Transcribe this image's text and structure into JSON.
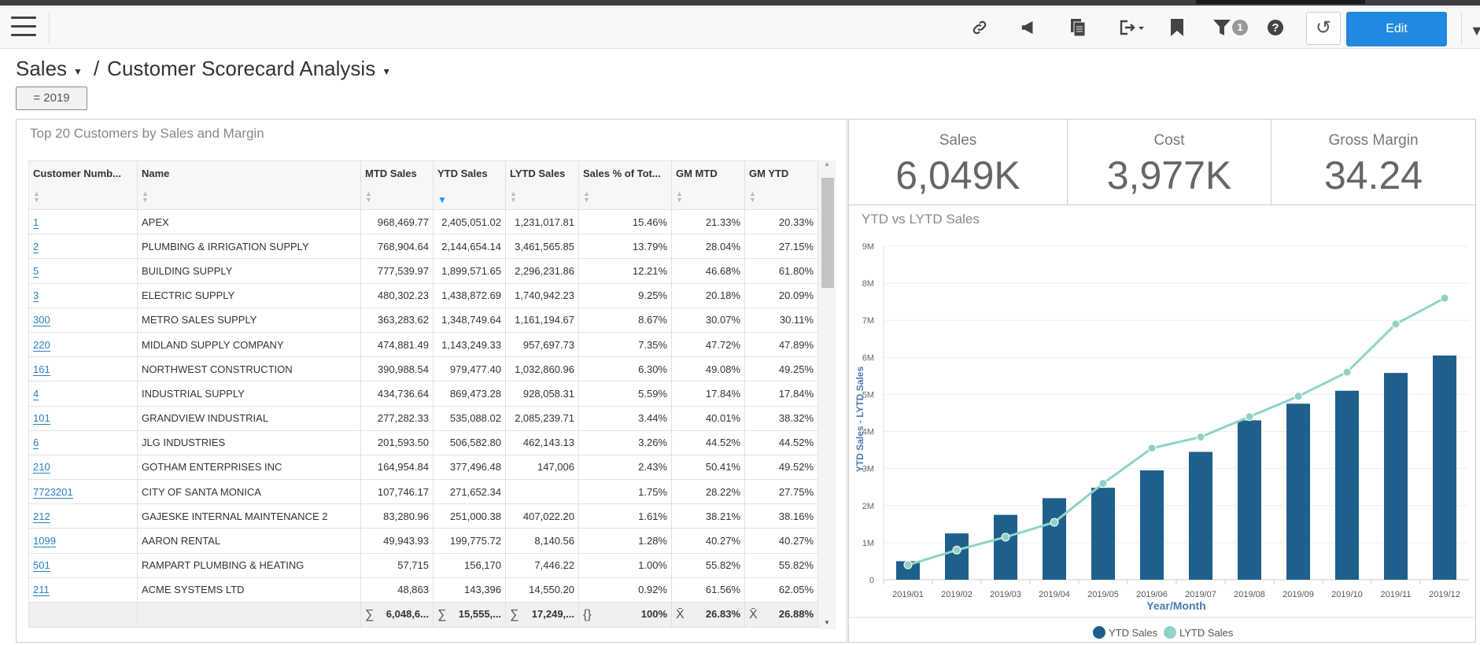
{
  "toolbar": {
    "edit_label": "Edit",
    "filter_count": "1",
    "icons": [
      "menu-icon",
      "link-icon",
      "megaphone-icon",
      "document-icon",
      "export-icon",
      "bookmark-icon",
      "filter-icon",
      "help-icon",
      "refresh-icon"
    ]
  },
  "breadcrumb": {
    "parent": "Sales",
    "separator": "/",
    "current": "Customer Scorecard Analysis"
  },
  "filter_chip": "= 2019",
  "table": {
    "title": "Top 20 Customers by Sales and Margin",
    "columns": [
      "Customer Numb...",
      "Name",
      "MTD Sales",
      "YTD Sales",
      "LYTD Sales",
      "Sales % of Tot...",
      "GM MTD",
      "GM YTD"
    ],
    "sorted_column": "YTD Sales",
    "rows": [
      [
        "1",
        "APEX",
        "968,469.77",
        "2,405,051.02",
        "1,231,017.81",
        "15.46%",
        "21.33%",
        "20.33%"
      ],
      [
        "2",
        "PLUMBING & IRRIGATION SUPPLY",
        "768,904.64",
        "2,144,654.14",
        "3,461,565.85",
        "13.79%",
        "28.04%",
        "27.15%"
      ],
      [
        "5",
        "BUILDING SUPPLY",
        "777,539.97",
        "1,899,571.65",
        "2,296,231.86",
        "12.21%",
        "46.68%",
        "61.80%"
      ],
      [
        "3",
        "ELECTRIC SUPPLY",
        "480,302.23",
        "1,438,872.69",
        "1,740,942.23",
        "9.25%",
        "20.18%",
        "20.09%"
      ],
      [
        "300",
        "METRO SALES SUPPLY",
        "363,283.62",
        "1,348,749.64",
        "1,161,194.67",
        "8.67%",
        "30.07%",
        "30.11%"
      ],
      [
        "220",
        "MIDLAND SUPPLY COMPANY",
        "474,881.49",
        "1,143,249.33",
        "957,697.73",
        "7.35%",
        "47.72%",
        "47.89%"
      ],
      [
        "161",
        "NORTHWEST CONSTRUCTION",
        "390,988.54",
        "979,477.40",
        "1,032,860.96",
        "6.30%",
        "49.08%",
        "49.25%"
      ],
      [
        "4",
        "INDUSTRIAL SUPPLY",
        "434,736.64",
        "869,473.28",
        "928,058.31",
        "5.59%",
        "17.84%",
        "17.84%"
      ],
      [
        "101",
        "GRANDVIEW INDUSTRIAL",
        "277,282.33",
        "535,088.02",
        "2,085,239.71",
        "3.44%",
        "40.01%",
        "38.32%"
      ],
      [
        "6",
        "JLG INDUSTRIES",
        "201,593.50",
        "506,582.80",
        "462,143.13",
        "3.26%",
        "44.52%",
        "44.52%"
      ],
      [
        "210",
        "GOTHAM ENTERPRISES INC",
        "164,954.84",
        "377,496.48",
        "147,006",
        "2.43%",
        "50.41%",
        "49.52%"
      ],
      [
        "7723201",
        "CITY OF SANTA MONICA",
        "107,746.17",
        "271,652.34",
        "",
        "1.75%",
        "28.22%",
        "27.75%"
      ],
      [
        "212",
        "GAJESKE INTERNAL MAINTENANCE 2",
        "83,280.96",
        "251,000.38",
        "407,022.20",
        "1.61%",
        "38.21%",
        "38.16%"
      ],
      [
        "1099",
        "AARON RENTAL",
        "49,943.93",
        "199,775.72",
        "8,140.56",
        "1.28%",
        "40.27%",
        "40.27%"
      ],
      [
        "501",
        "RAMPART PLUMBING & HEATING",
        "57,715",
        "156,170",
        "7,446.22",
        "1.00%",
        "55.82%",
        "55.82%"
      ],
      [
        "211",
        "ACME SYSTEMS LTD",
        "48,863",
        "143,396",
        "14,550.20",
        "0.92%",
        "61.56%",
        "62.05%"
      ]
    ],
    "footer": [
      {
        "symbol": "",
        "value": ""
      },
      {
        "symbol": "",
        "value": ""
      },
      {
        "symbol": "∑",
        "value": "6,048,6..."
      },
      {
        "symbol": "∑",
        "value": "15,555,..."
      },
      {
        "symbol": "∑",
        "value": "17,249,..."
      },
      {
        "symbol": "{}",
        "value": "100%"
      },
      {
        "symbol": "X̄",
        "value": "26.83%"
      },
      {
        "symbol": "X̄",
        "value": "26.88%"
      }
    ]
  },
  "kpis": [
    {
      "label": "Sales",
      "value": "6,049K"
    },
    {
      "label": "Cost",
      "value": "3,977K"
    },
    {
      "label": "Gross Margin",
      "value": "34.24"
    }
  ],
  "chart_data": {
    "type": "bar+line",
    "title": "YTD vs LYTD Sales",
    "xlabel": "Year/Month",
    "ylabel": "YTD Sales  -  LYTD Sales",
    "categories": [
      "2019/01",
      "2019/02",
      "2019/03",
      "2019/04",
      "2019/05",
      "2019/06",
      "2019/07",
      "2019/08",
      "2019/09",
      "2019/10",
      "2019/11",
      "2019/12"
    ],
    "ylim": [
      0,
      9000000
    ],
    "yticks": [
      "0",
      "1M",
      "2M",
      "3M",
      "4M",
      "5M",
      "6M",
      "7M",
      "8M",
      "9M"
    ],
    "grid": true,
    "legend_position": "bottom",
    "series": [
      {
        "name": "YTD Sales",
        "type": "bar",
        "color": "#1f5f8b",
        "values": [
          500000,
          1250000,
          1750000,
          2200000,
          2480000,
          2950000,
          3450000,
          4300000,
          4750000,
          5100000,
          5580000,
          6050000
        ]
      },
      {
        "name": "LYTD Sales",
        "type": "line",
        "color": "#8fd3c7",
        "values": [
          400000,
          800000,
          1150000,
          1550000,
          2600000,
          3550000,
          3850000,
          4400000,
          4950000,
          5600000,
          6900000,
          7600000
        ]
      }
    ]
  }
}
